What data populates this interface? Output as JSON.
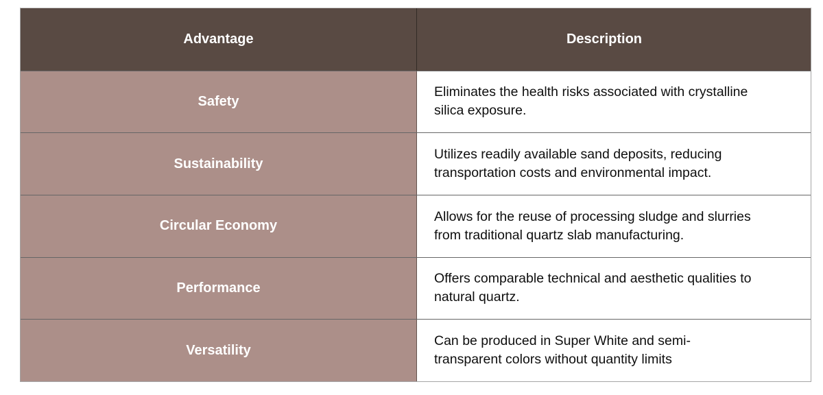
{
  "colors": {
    "page_bg": "#ffffff",
    "header_bg": "#594a43",
    "label_bg": "#ac8f89",
    "header_text": "#ffffff",
    "label_text": "#ffffff",
    "description_text": "#0e0e0e"
  },
  "table": {
    "columns": [
      {
        "label": "Advantage"
      },
      {
        "label": "Description"
      }
    ],
    "rows": [
      {
        "advantage": "Safety",
        "description": [
          "Eliminates the health risks associated with crystalline",
          "silica exposure."
        ]
      },
      {
        "advantage": "Sustainability",
        "description": [
          "Utilizes readily available sand deposits, reducing",
          "transportation costs and environmental impact."
        ]
      },
      {
        "advantage": "Circular Economy",
        "description": [
          "Allows for the reuse of processing sludge and slurries",
          "from traditional quartz slab manufacturing."
        ]
      },
      {
        "advantage": "Performance",
        "description": [
          "Offers comparable technical and aesthetic qualities to",
          "natural quartz."
        ]
      },
      {
        "advantage": "Versatility",
        "description": [
          "Can be produced in Super White and semi-",
          "transparent colors without quantity limits"
        ]
      }
    ]
  }
}
